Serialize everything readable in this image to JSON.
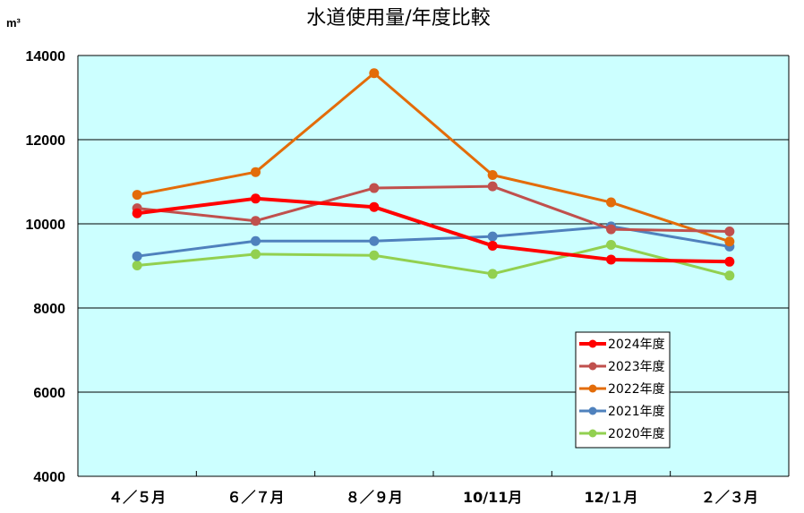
{
  "chart_data": {
    "type": "line",
    "title": "水道使用量/年度比較",
    "unit_label": "m³",
    "xlabel": "",
    "ylabel": "",
    "categories": [
      "４／５月",
      "６／７月",
      "８／９月",
      "10/11月",
      "12/１月",
      "２／３月"
    ],
    "ylim": [
      4000,
      14000
    ],
    "yticks": [
      4000,
      6000,
      8000,
      10000,
      12000,
      14000
    ],
    "grid": true,
    "legend_position": "bottom-right",
    "plot_background": "#ccffff",
    "series": [
      {
        "name": "2024年度",
        "color": "#ff0000",
        "values": [
          10250,
          10600,
          10400,
          9480,
          9150,
          9100
        ]
      },
      {
        "name": "2023年度",
        "color": "#c0504d",
        "values": [
          10370,
          10070,
          10850,
          10890,
          9870,
          9820
        ]
      },
      {
        "name": "2022年度",
        "color": "#e36c09",
        "values": [
          10690,
          11230,
          13580,
          11160,
          10510,
          9580
        ]
      },
      {
        "name": "2021年度",
        "color": "#4f81bd",
        "values": [
          9230,
          9590,
          9590,
          9700,
          9940,
          9460
        ]
      },
      {
        "name": "2020年度",
        "color": "#92d050",
        "values": [
          9010,
          9280,
          9250,
          8810,
          9500,
          8770
        ]
      }
    ]
  }
}
